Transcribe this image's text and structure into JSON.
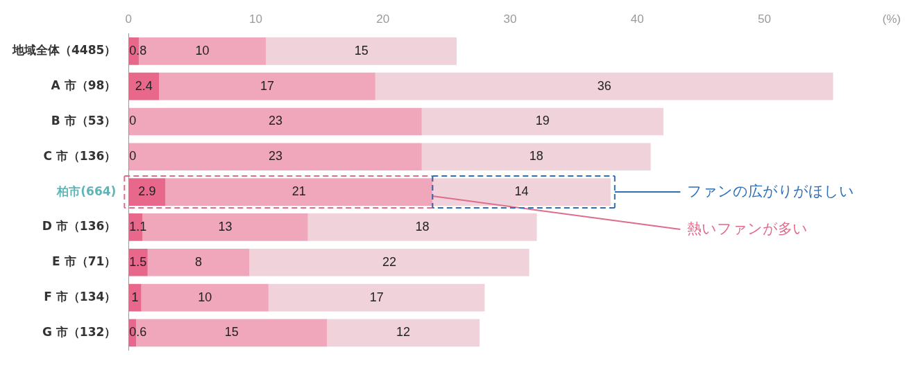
{
  "chart_data": {
    "type": "bar",
    "orientation": "horizontal",
    "stacked": true,
    "data_labels": true,
    "categories": [
      "地域全体（4485）",
      "A 市（98）",
      "B 市（53）",
      "C 市（136）",
      "柏市(664)",
      "D 市（136）",
      "E 市（71）",
      "F 市（134）",
      "G 市（132）"
    ],
    "series": [
      {
        "color": "#e8688c",
        "values": [
          0.8,
          2.4,
          0,
          0,
          2.9,
          1.1,
          1.5,
          1,
          0.6
        ]
      },
      {
        "color": "#f0a6bb",
        "values": [
          10,
          17,
          23,
          23,
          21,
          13,
          8,
          10,
          15
        ]
      },
      {
        "color": "#f0d2da",
        "values": [
          15,
          36,
          19,
          18,
          14,
          18,
          22,
          17,
          12
        ]
      }
    ],
    "xlim": [
      0,
      60
    ],
    "xticks": [
      0,
      10,
      20,
      30,
      40,
      50,
      {
        "value": 60,
        "label": "(%)"
      }
    ],
    "grid": false,
    "annotations": [
      {
        "text": "熱いファンが多い",
        "x": 23.9,
        "y": "柏市(664)"
      },
      {
        "text": "ファンの広がりがほしい",
        "x": 37.9,
        "y": "柏市(664)"
      }
    ]
  }
}
